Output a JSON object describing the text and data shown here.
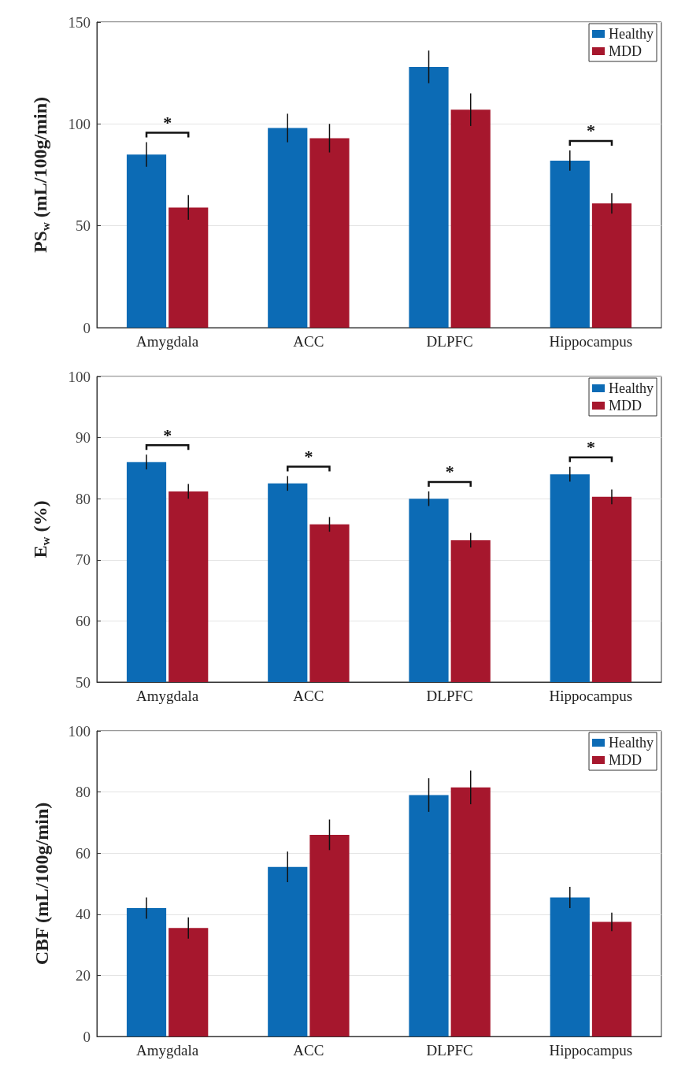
{
  "chart_data": [
    {
      "type": "bar",
      "ylabel": "PS$_{w}$ (mL/100g/min)",
      "categories": [
        "Amygdala",
        "ACC",
        "DLPFC",
        "Hippocampus"
      ],
      "series": [
        {
          "name": "Healthy",
          "color": "#0c6bb5",
          "values": [
            85,
            98,
            128,
            82
          ],
          "errors": [
            6,
            7,
            8,
            5
          ]
        },
        {
          "name": "MDD",
          "color": "#a6172d",
          "values": [
            59,
            93,
            107,
            61
          ],
          "errors": [
            6,
            7,
            8,
            5
          ]
        }
      ],
      "ylim": [
        0,
        150
      ],
      "yticks": [
        0,
        50,
        100,
        150
      ],
      "grid": "y",
      "legend": "top right",
      "annotations": [
        "*",
        null,
        null,
        "*"
      ]
    },
    {
      "type": "bar",
      "ylabel": "E$_{w}$ (%)",
      "categories": [
        "Amygdala",
        "ACC",
        "DLPFC",
        "Hippocampus"
      ],
      "series": [
        {
          "name": "Healthy",
          "color": "#0c6bb5",
          "values": [
            86,
            82.5,
            80,
            84
          ],
          "errors": [
            1.2,
            1.2,
            1.2,
            1.2
          ]
        },
        {
          "name": "MDD",
          "color": "#a6172d",
          "values": [
            81.2,
            75.8,
            73.2,
            80.3
          ],
          "errors": [
            1.2,
            1.2,
            1.2,
            1.2
          ]
        }
      ],
      "ylim": [
        50,
        100
      ],
      "yticks": [
        50,
        60,
        70,
        80,
        90,
        100
      ],
      "grid": "y",
      "legend": "top right",
      "annotations": [
        "*",
        "*",
        "*",
        "*"
      ]
    },
    {
      "type": "bar",
      "ylabel": "CBF (mL/100g/min)",
      "categories": [
        "Amygdala",
        "ACC",
        "DLPFC",
        "Hippocampus"
      ],
      "series": [
        {
          "name": "Healthy",
          "color": "#0c6bb5",
          "values": [
            42,
            55.5,
            79,
            45.5
          ],
          "errors": [
            3.5,
            5,
            5.5,
            3.5
          ]
        },
        {
          "name": "MDD",
          "color": "#a6172d",
          "values": [
            35.5,
            66,
            81.5,
            37.5
          ],
          "errors": [
            3.5,
            5,
            5.5,
            3
          ]
        }
      ],
      "ylim": [
        0,
        100
      ],
      "yticks": [
        0,
        20,
        40,
        60,
        80,
        100
      ],
      "grid": "y",
      "legend": "top right"
    }
  ]
}
